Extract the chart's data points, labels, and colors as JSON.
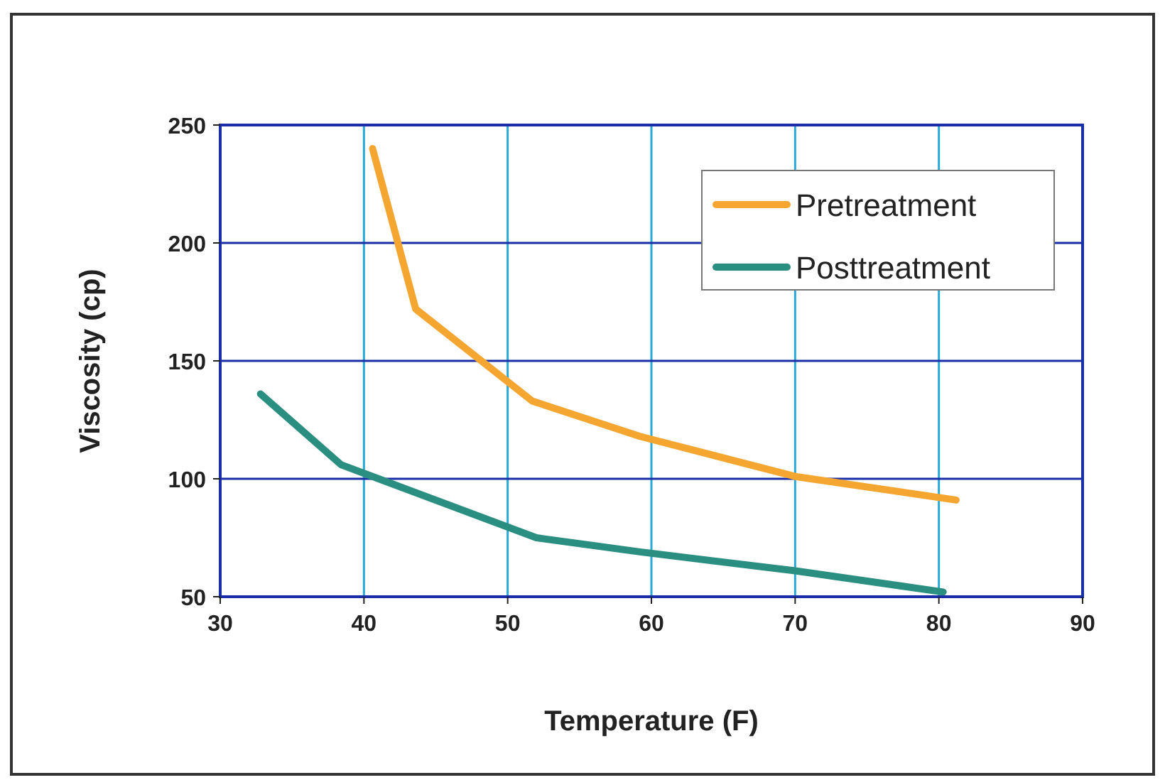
{
  "chart_data": {
    "type": "line",
    "xlabel": "Temperature (F)",
    "ylabel": "Viscosity (cp)",
    "xlim": [
      30,
      90
    ],
    "xticks": [
      30,
      40,
      50,
      60,
      70,
      80,
      90
    ],
    "ylim": [
      50,
      250
    ],
    "yticks": [
      50,
      100,
      150,
      200,
      250
    ],
    "grid": true,
    "legend": "top right",
    "marker": "none",
    "line_style": "solid",
    "series": [
      {
        "name": "Pretreatment",
        "color": "#f5a631",
        "x": [
          40.6,
          43.6,
          51.7,
          59.2,
          70,
          81.2
        ],
        "values": [
          240,
          172,
          133,
          118,
          101,
          91
        ]
      },
      {
        "name": "Posttreatment",
        "color": "#2a8f80",
        "x": [
          32.8,
          38.4,
          52,
          59.2,
          70,
          80.3
        ],
        "values": [
          136,
          106,
          75,
          69,
          61,
          52
        ]
      }
    ]
  }
}
